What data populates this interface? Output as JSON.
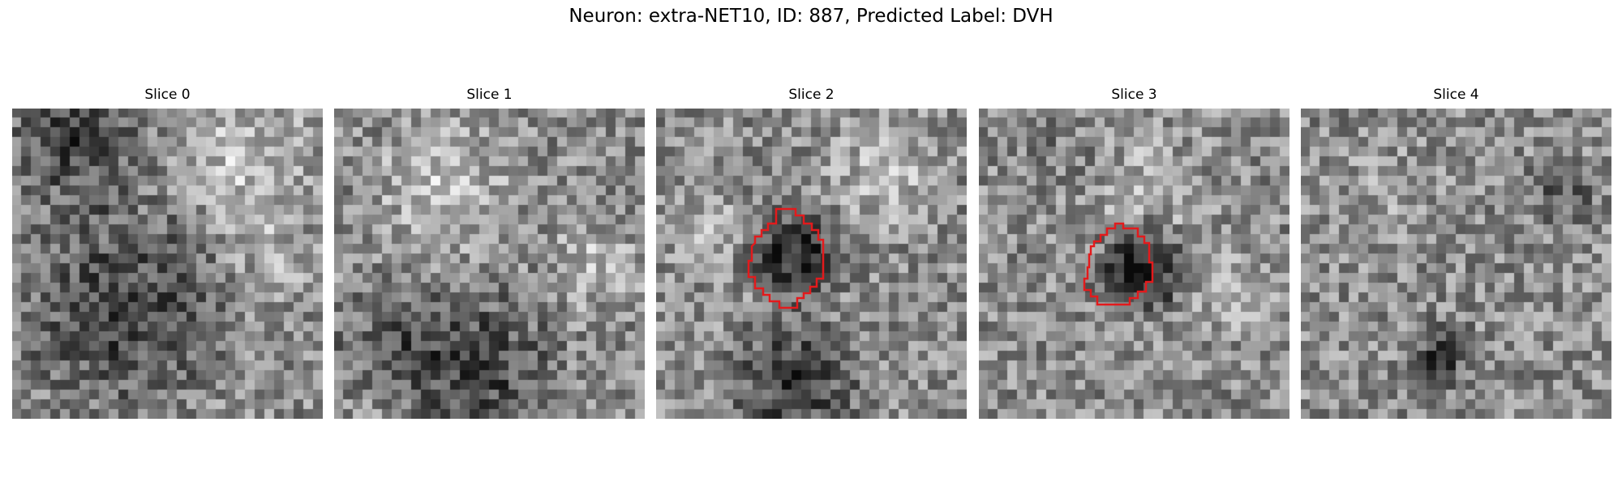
{
  "figure": {
    "title": "Neuron: extra-NET10, ID: 887, Predicted Label: DVH"
  },
  "panels": [
    {
      "title": "Slice 0",
      "has_outline": false
    },
    {
      "title": "Slice 1",
      "has_outline": false
    },
    {
      "title": "Slice 2",
      "has_outline": true
    },
    {
      "title": "Slice 3",
      "has_outline": true
    },
    {
      "title": "Slice 4",
      "has_outline": false
    }
  ],
  "colors": {
    "outline": "#e31a1c",
    "background": "#ffffff"
  }
}
